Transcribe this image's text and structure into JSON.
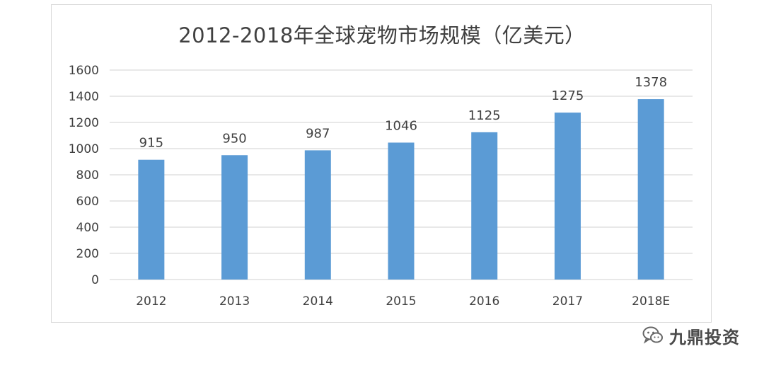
{
  "chart_data": {
    "type": "bar",
    "title": "2012-2018年全球宠物市场规模（亿美元）",
    "categories": [
      "2012",
      "2013",
      "2014",
      "2015",
      "2016",
      "2017",
      "2018E"
    ],
    "values": [
      915,
      950,
      987,
      1046,
      1125,
      1275,
      1378
    ],
    "data_labels": [
      "915",
      "950",
      "987",
      "1046",
      "1125",
      "1275",
      "1378"
    ],
    "xlabel": "",
    "ylabel": "",
    "ylim": [
      0,
      1600
    ],
    "yticks": [
      0,
      200,
      400,
      600,
      800,
      1000,
      1200,
      1400,
      1600
    ],
    "ytick_labels": [
      "0",
      "200",
      "400",
      "600",
      "800",
      "1000",
      "1200",
      "1400",
      "1600"
    ],
    "grid": true,
    "legend": "none",
    "colors": {
      "bar": "#5b9bd5",
      "grid": "#d9d9d9",
      "text": "#404040"
    }
  },
  "watermark": {
    "icon": "wechat-icon",
    "text": "九鼎投资"
  }
}
